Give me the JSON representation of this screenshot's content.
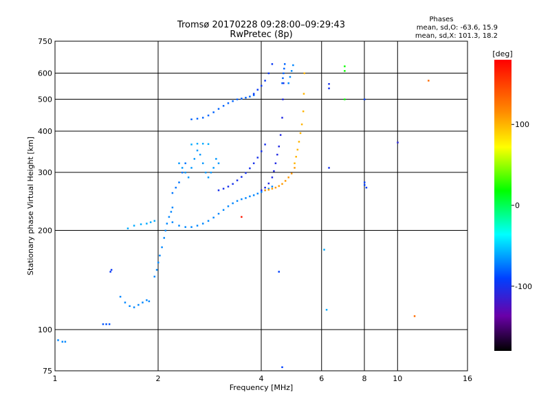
{
  "chart_data": {
    "type": "scatter",
    "title": "Tromsø 20170228 09:28:00–09:29:43",
    "subtitle": "RwPretec (8p)",
    "xlabel": "Frequency [MHz]",
    "ylabel": "Stationary phase Virtual Height [km]",
    "x_scale": "log",
    "y_scale": "log",
    "xlim": [
      1,
      16
    ],
    "ylim": [
      75,
      750
    ],
    "x_ticks": [
      1,
      2,
      4,
      6,
      8,
      10,
      16
    ],
    "y_ticks": [
      75,
      100,
      200,
      300,
      400,
      500,
      600,
      750
    ],
    "grid": true,
    "phase_header": "Phases",
    "phase_o_stats": "mean, sd,O: -63.6, 15.9",
    "phase_x_stats": "mean, sd,X: 101.3, 18.2",
    "colorbar": {
      "label": "[deg]",
      "range": [
        -180,
        180
      ],
      "ticks": [
        100,
        0,
        -100
      ],
      "colormap": "rainbow (black → purple → blue → cyan → green → yellow → orange → red)"
    },
    "traces": [
      {
        "x": [
          1.02,
          1.05,
          1.07
        ],
        "y": [
          93,
          92,
          92
        ],
        "phase": -70
      },
      {
        "x": [
          1.38,
          1.41,
          1.44
        ],
        "y": [
          104,
          104,
          104
        ],
        "phase": -85
      },
      {
        "x": [
          1.45,
          1.46
        ],
        "y": [
          150,
          152
        ],
        "phase": -95
      },
      {
        "x": [
          1.55,
          1.6,
          1.65,
          1.7,
          1.75,
          1.8,
          1.85,
          1.88
        ],
        "y": [
          126,
          121,
          118,
          117,
          119,
          121,
          123,
          122
        ],
        "phase": -70
      },
      {
        "x": [
          1.63,
          1.7,
          1.78,
          1.85,
          1.9,
          1.95
        ],
        "y": [
          203,
          207,
          209,
          210,
          212,
          214
        ],
        "phase": -60
      },
      {
        "x": [
          1.95,
          1.98,
          2.0,
          2.02,
          2.05,
          2.08,
          2.1,
          2.12,
          2.15,
          2.18,
          2.2
        ],
        "y": [
          145,
          152,
          160,
          168,
          178,
          190,
          200,
          210,
          220,
          228,
          235
        ],
        "phase": -70
      },
      {
        "x": [
          2.2,
          2.3,
          2.4,
          2.5,
          2.6,
          2.7,
          2.8,
          2.9,
          3.0,
          3.1,
          3.2,
          3.3,
          3.4,
          3.5,
          3.6,
          3.7,
          3.8,
          3.9,
          4.0,
          4.1,
          4.2,
          4.3
        ],
        "y": [
          212,
          207,
          205,
          205,
          207,
          210,
          214,
          219,
          225,
          231,
          237,
          242,
          246,
          249,
          251,
          254,
          256,
          259,
          262,
          265,
          268,
          272
        ],
        "phase": -70
      },
      {
        "x": [
          2.3,
          2.35,
          2.4,
          2.45,
          2.5,
          2.55,
          2.6,
          2.65,
          2.7,
          2.75,
          2.8,
          2.85,
          2.9,
          2.95,
          3.0
        ],
        "y": [
          320,
          310,
          300,
          290,
          310,
          330,
          350,
          340,
          320,
          300,
          290,
          300,
          310,
          330,
          320
        ],
        "phase": -65
      },
      {
        "x": [
          2.2,
          2.25,
          2.3,
          2.35,
          2.4
        ],
        "y": [
          260,
          270,
          280,
          300,
          320
        ],
        "phase": -75
      },
      {
        "x": [
          2.5,
          2.6,
          2.7,
          2.8
        ],
        "y": [
          365,
          367,
          367,
          366
        ],
        "phase": -60
      },
      {
        "x": [
          2.5,
          2.6,
          2.7,
          2.8,
          2.9,
          3.0,
          3.1,
          3.2,
          3.3,
          3.4,
          3.5,
          3.6,
          3.7,
          3.8
        ],
        "y": [
          435,
          437,
          440,
          447,
          457,
          468,
          478,
          487,
          494,
          500,
          503,
          506,
          510,
          515
        ],
        "phase": -80
      },
      {
        "x": [
          3.0,
          3.1,
          3.2,
          3.3,
          3.4,
          3.5,
          3.6,
          3.7,
          3.8,
          3.9,
          4.0,
          4.1
        ],
        "y": [
          265,
          268,
          272,
          277,
          284,
          291,
          299,
          309,
          320,
          333,
          348,
          365
        ],
        "phase": -100
      },
      {
        "x": [
          3.8,
          3.9,
          4.0,
          4.1,
          4.2,
          4.3
        ],
        "y": [
          520,
          535,
          550,
          570,
          600,
          640
        ],
        "phase": -95
      },
      {
        "x": [
          4.0,
          4.1,
          4.2,
          4.3,
          4.35,
          4.4,
          4.45,
          4.5,
          4.55,
          4.6,
          4.62,
          4.64
        ],
        "y": [
          265,
          270,
          278,
          290,
          303,
          320,
          340,
          360,
          390,
          440,
          500,
          560
        ],
        "phase": -105
      },
      {
        "x": [
          4.6,
          4.62,
          4.64,
          4.66,
          4.68
        ],
        "y": [
          560,
          580,
          600,
          620,
          640
        ],
        "phase": -80
      },
      {
        "x": [
          4.1,
          4.2,
          4.3,
          4.4,
          4.5,
          4.6,
          4.7,
          4.8,
          4.9,
          5.0
        ],
        "y": [
          265,
          266,
          268,
          270,
          273,
          277,
          283,
          290,
          298,
          310
        ],
        "phase": 110
      },
      {
        "x": [
          5.0,
          5.05,
          5.1,
          5.15,
          5.2,
          5.25,
          5.3,
          5.32,
          5.34
        ],
        "y": [
          320,
          335,
          352,
          372,
          395,
          420,
          460,
          520,
          600
        ],
        "phase": 100
      },
      {
        "x": [
          4.8,
          4.85,
          4.9,
          4.95
        ],
        "y": [
          560,
          585,
          610,
          635
        ],
        "phase": -70
      },
      {
        "x": [
          6.3,
          6.3,
          6.3
        ],
        "y": [
          557,
          540,
          310
        ],
        "phase": -100
      },
      {
        "x": [
          7.0,
          7.0,
          7.0
        ],
        "y": [
          630,
          610,
          500
        ],
        "phase": 20
      },
      {
        "x": [
          8.0,
          8.0,
          8.0,
          8.1
        ],
        "y": [
          500,
          280,
          275,
          270
        ],
        "phase": -90
      },
      {
        "x": [
          10.0
        ],
        "y": [
          370
        ],
        "phase": -110
      },
      {
        "x": [
          6.1,
          6.2
        ],
        "y": [
          175,
          115
        ],
        "phase": -60
      },
      {
        "x": [
          4.5,
          4.6
        ],
        "y": [
          150,
          77
        ],
        "phase": -90
      },
      {
        "x": [
          11.2,
          12.3
        ],
        "y": [
          110,
          570
        ],
        "phase": 130
      },
      {
        "x": [
          3.5
        ],
        "y": [
          220
        ],
        "phase": 170
      }
    ]
  }
}
